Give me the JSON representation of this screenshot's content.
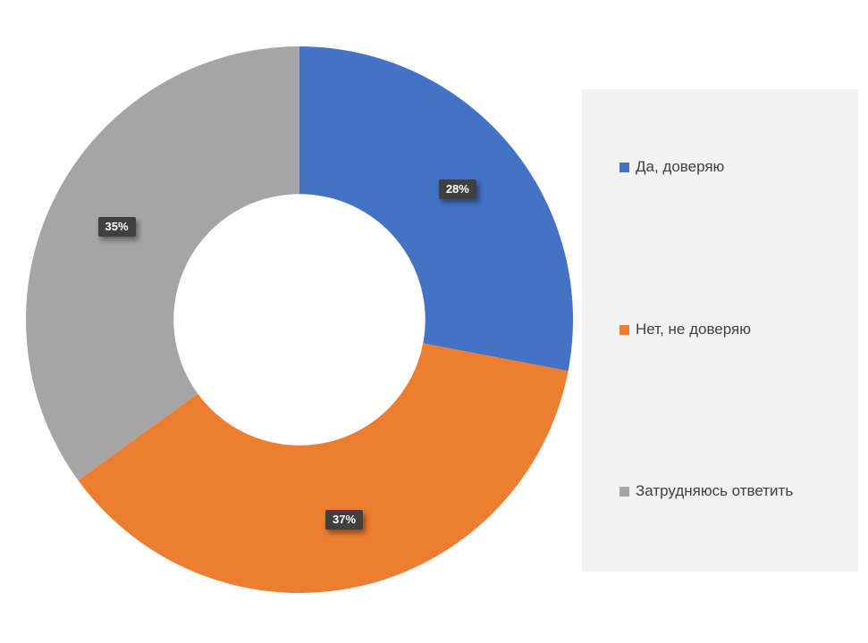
{
  "chart_data": {
    "type": "pie",
    "subtype": "donut",
    "title": "",
    "categories": [
      "Да, доверяю",
      "Нет, не доверяю",
      "Затрудняюсь ответить"
    ],
    "values": [
      28,
      37,
      35
    ],
    "data_labels": [
      "28%",
      "37%",
      "35%"
    ],
    "colors": [
      "#4472c4",
      "#ed7d31",
      "#a5a5a5"
    ],
    "start_angle_deg": 0,
    "direction": "clockwise",
    "hole_ratio": 0.46,
    "legend_position": "right",
    "grid": "off"
  },
  "legend": {
    "items": [
      {
        "label": "Да, доверяю",
        "color": "#4472c4"
      },
      {
        "label": "Нет, не доверяю",
        "color": "#ed7d31"
      },
      {
        "label": "Затрудняюсь ответить",
        "color": "#a5a5a5"
      }
    ]
  },
  "badges": {
    "bg": "#404040",
    "text_color": "#ffffff"
  }
}
